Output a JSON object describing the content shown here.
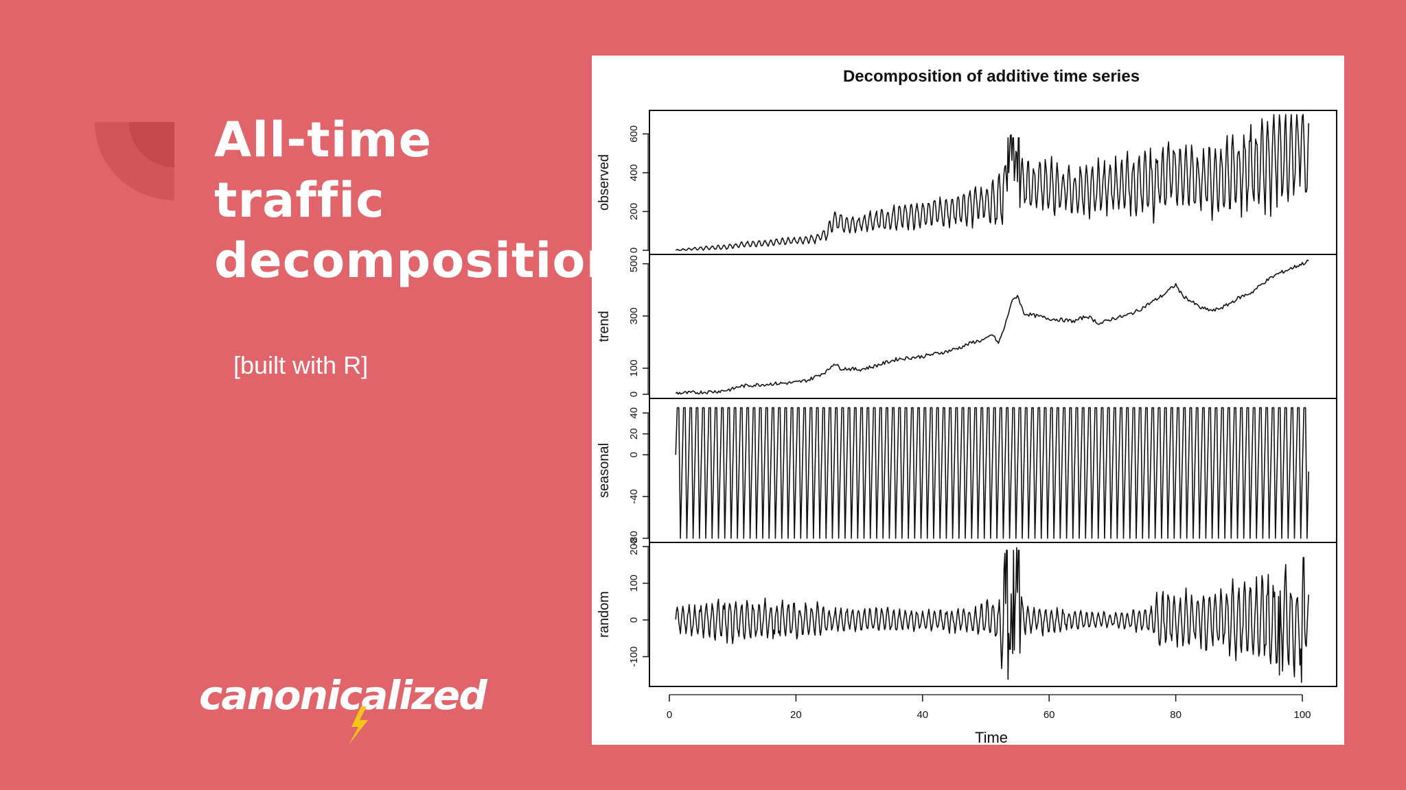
{
  "slide": {
    "title_lines": [
      "All-time",
      "traffic",
      "decomposition"
    ],
    "subtitle": "[built with R]",
    "logo_text": "canonicalized",
    "colors": {
      "background": "#e0646a",
      "text": "#ffffff",
      "logo_accent": "#f5c518"
    }
  },
  "chart_data": {
    "type": "line",
    "title": "Decomposition of additive time series",
    "xlabel": "Time",
    "xlim": [
      0,
      100
    ],
    "xticks": [
      0,
      20,
      40,
      60,
      80,
      100
    ],
    "x_start": 1,
    "x_end": 101,
    "grid": false,
    "panels": [
      {
        "name": "observed",
        "ylim": [
          0,
          700
        ],
        "yticks": [
          0,
          200,
          400,
          600
        ],
        "anchors": [
          [
            1,
            0
          ],
          [
            4,
            8
          ],
          [
            8,
            15
          ],
          [
            12,
            30
          ],
          [
            16,
            40
          ],
          [
            20,
            50
          ],
          [
            23,
            60
          ],
          [
            25,
            90
          ],
          [
            26,
            160
          ],
          [
            28,
            130
          ],
          [
            32,
            150
          ],
          [
            36,
            170
          ],
          [
            40,
            190
          ],
          [
            44,
            200
          ],
          [
            48,
            230
          ],
          [
            50,
            250
          ],
          [
            52,
            240
          ],
          [
            53,
            320
          ],
          [
            54,
            500
          ],
          [
            55,
            330
          ],
          [
            56,
            340
          ],
          [
            60,
            330
          ],
          [
            64,
            310
          ],
          [
            68,
            320
          ],
          [
            72,
            340
          ],
          [
            76,
            350
          ],
          [
            80,
            410
          ],
          [
            84,
            360
          ],
          [
            88,
            390
          ],
          [
            92,
            420
          ],
          [
            94,
            460
          ],
          [
            96,
            470
          ],
          [
            98,
            480
          ],
          [
            100,
            560
          ],
          [
            101,
            400
          ]
        ],
        "amplitude": [
          [
            1,
            5
          ],
          [
            10,
            15
          ],
          [
            20,
            20
          ],
          [
            24,
            30
          ],
          [
            26,
            60
          ],
          [
            30,
            40
          ],
          [
            36,
            70
          ],
          [
            44,
            90
          ],
          [
            50,
            110
          ],
          [
            53,
            180
          ],
          [
            56,
            150
          ],
          [
            64,
            140
          ],
          [
            72,
            160
          ],
          [
            78,
            200
          ],
          [
            84,
            170
          ],
          [
            88,
            210
          ],
          [
            92,
            240
          ],
          [
            96,
            260
          ],
          [
            101,
            260
          ]
        ],
        "spikes": [
          [
            53.5,
            580
          ],
          [
            54.3,
            580
          ],
          [
            55.2,
            580
          ]
        ]
      },
      {
        "name": "trend",
        "ylim": [
          0,
          520
        ],
        "yticks": [
          0,
          100,
          300,
          500
        ],
        "anchors": [
          [
            1,
            5
          ],
          [
            3,
            5
          ],
          [
            5,
            8
          ],
          [
            8,
            12
          ],
          [
            10,
            20
          ],
          [
            11,
            30
          ],
          [
            13,
            35
          ],
          [
            16,
            40
          ],
          [
            20,
            45
          ],
          [
            22,
            55
          ],
          [
            25,
            90
          ],
          [
            26,
            120
          ],
          [
            27,
            100
          ],
          [
            30,
            95
          ],
          [
            32,
            105
          ],
          [
            34,
            120
          ],
          [
            36,
            135
          ],
          [
            40,
            145
          ],
          [
            42,
            155
          ],
          [
            44,
            165
          ],
          [
            46,
            180
          ],
          [
            48,
            200
          ],
          [
            50,
            210
          ],
          [
            51,
            230
          ],
          [
            52,
            195
          ],
          [
            53,
            260
          ],
          [
            54,
            350
          ],
          [
            55,
            380
          ],
          [
            56,
            310
          ],
          [
            58,
            300
          ],
          [
            60,
            290
          ],
          [
            64,
            280
          ],
          [
            66,
            300
          ],
          [
            68,
            270
          ],
          [
            70,
            290
          ],
          [
            72,
            300
          ],
          [
            74,
            320
          ],
          [
            76,
            350
          ],
          [
            78,
            380
          ],
          [
            80,
            420
          ],
          [
            81,
            380
          ],
          [
            84,
            330
          ],
          [
            86,
            320
          ],
          [
            88,
            340
          ],
          [
            90,
            370
          ],
          [
            92,
            390
          ],
          [
            94,
            430
          ],
          [
            96,
            460
          ],
          [
            98,
            480
          ],
          [
            100,
            500
          ],
          [
            101,
            510
          ]
        ],
        "noise": 14
      },
      {
        "name": "seasonal",
        "ylim": [
          -80,
          50
        ],
        "yticks": [
          -80,
          -40,
          0,
          20,
          40
        ],
        "peak": 45,
        "trough": -80,
        "cycles": 100
      },
      {
        "name": "random",
        "ylim": [
          -170,
          200
        ],
        "yticks": [
          -100,
          0,
          100,
          200
        ],
        "amplitude": [
          [
            1,
            40
          ],
          [
            10,
            60
          ],
          [
            20,
            55
          ],
          [
            28,
            35
          ],
          [
            40,
            30
          ],
          [
            48,
            40
          ],
          [
            52,
            60
          ],
          [
            53,
            220
          ],
          [
            55,
            200
          ],
          [
            56,
            50
          ],
          [
            62,
            30
          ],
          [
            70,
            20
          ],
          [
            76,
            40
          ],
          [
            78,
            90
          ],
          [
            82,
            80
          ],
          [
            88,
            100
          ],
          [
            92,
            120
          ],
          [
            96,
            150
          ],
          [
            99,
            150
          ],
          [
            101,
            80
          ]
        ],
        "spikes": [
          [
            53.3,
            190
          ],
          [
            54.4,
            190
          ],
          [
            55.2,
            190
          ],
          [
            53.8,
            -80
          ],
          [
            96.4,
            -150
          ],
          [
            99.9,
            -170
          ],
          [
            100.2,
            170
          ]
        ]
      }
    ]
  }
}
